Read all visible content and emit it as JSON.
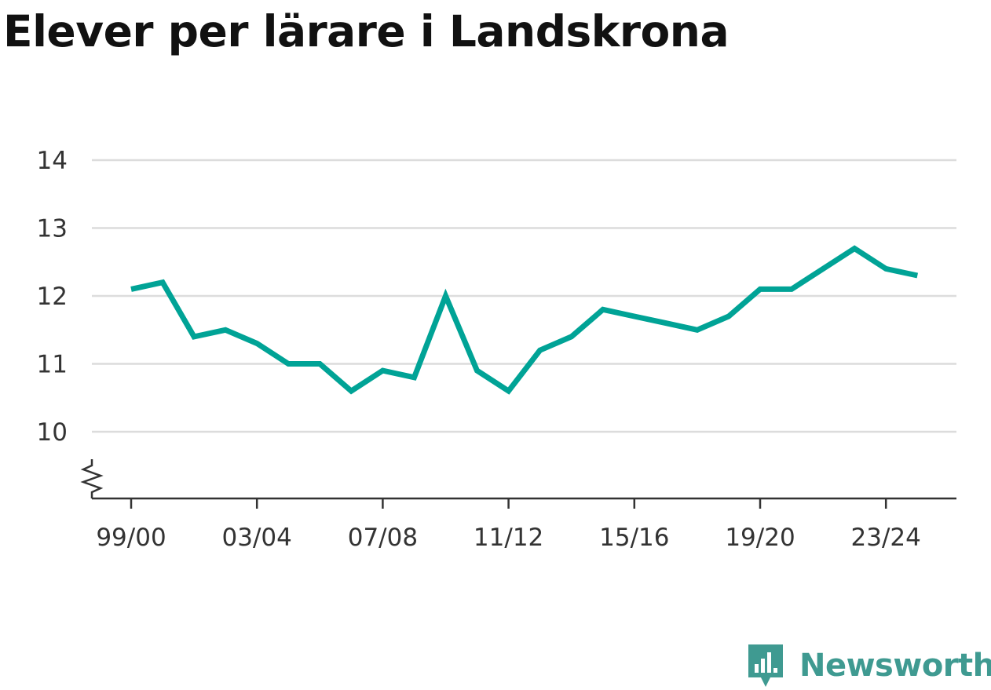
{
  "chart_data": {
    "type": "line",
    "title": "Elever per lärare i Landskrona",
    "xlabel": "",
    "ylabel": "",
    "x": [
      "99/00",
      "00/01",
      "01/02",
      "02/03",
      "03/04",
      "04/05",
      "05/06",
      "06/07",
      "07/08",
      "08/09",
      "09/10",
      "10/11",
      "11/12",
      "12/13",
      "13/14",
      "14/15",
      "15/16",
      "16/17",
      "17/18",
      "18/19",
      "19/20",
      "20/21",
      "21/22",
      "22/23",
      "23/24",
      "24/25"
    ],
    "x_tick_labels": [
      "99/00",
      "03/04",
      "07/08",
      "11/12",
      "15/16",
      "19/20",
      "23/24"
    ],
    "y_ticks": [
      10,
      11,
      12,
      13,
      14
    ],
    "ylim": [
      9,
      14
    ],
    "y_axis_break": true,
    "grid": true,
    "series": [
      {
        "color": "#00a396",
        "values": [
          12.1,
          12.2,
          11.4,
          11.5,
          11.3,
          11.0,
          11.0,
          10.6,
          10.9,
          10.8,
          12.0,
          10.9,
          10.6,
          11.2,
          11.4,
          11.8,
          11.7,
          11.6,
          11.5,
          11.7,
          12.1,
          12.1,
          12.4,
          12.7,
          12.4,
          12.3
        ]
      }
    ]
  },
  "brand": {
    "name": "Newsworthy",
    "color": "#3f9a91"
  }
}
